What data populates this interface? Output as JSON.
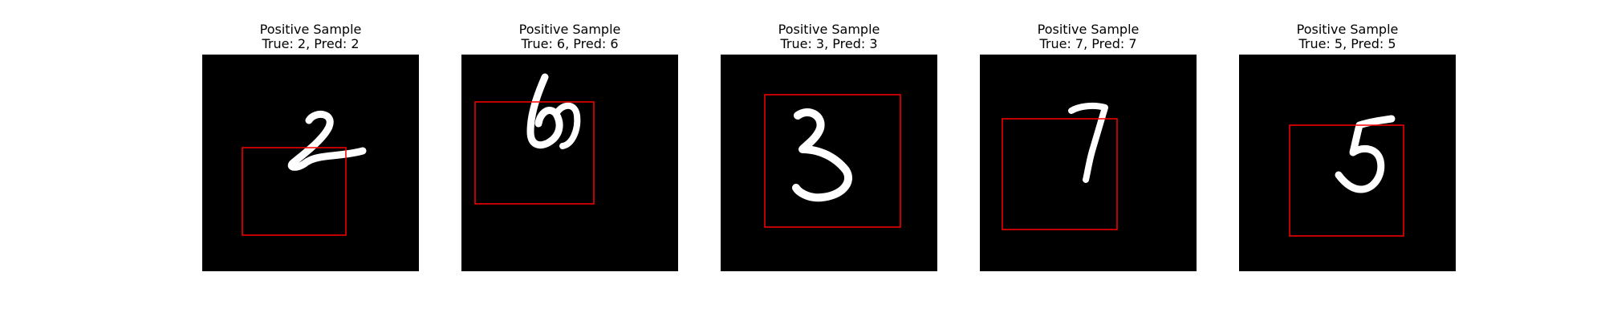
{
  "panels": [
    {
      "title_line1": "Positive Sample",
      "title_line2": "True: 2, Pred: 2",
      "digit": "2",
      "box": {
        "x": 50,
        "y": 116,
        "w": 129,
        "h": 109
      }
    },
    {
      "title_line1": "Positive Sample",
      "title_line2": "True: 6, Pred: 6",
      "digit": "6",
      "box": {
        "x": 17,
        "y": 59,
        "w": 148,
        "h": 127
      }
    },
    {
      "title_line1": "Positive Sample",
      "title_line2": "True: 3, Pred: 3",
      "digit": "3",
      "box": {
        "x": 55,
        "y": 50,
        "w": 169,
        "h": 165
      }
    },
    {
      "title_line1": "Positive Sample",
      "title_line2": "True: 7, Pred: 7",
      "digit": "7",
      "box": {
        "x": 28,
        "y": 80,
        "w": 143,
        "h": 138
      }
    },
    {
      "title_line1": "Positive Sample",
      "title_line2": "True: 5, Pred: 5",
      "digit": "5",
      "box": {
        "x": 63,
        "y": 88,
        "w": 142,
        "h": 138
      }
    }
  ],
  "colors": {
    "image_background": "#000000",
    "digit_stroke": "#ffffff",
    "bbox_stroke": "#ff0000"
  }
}
